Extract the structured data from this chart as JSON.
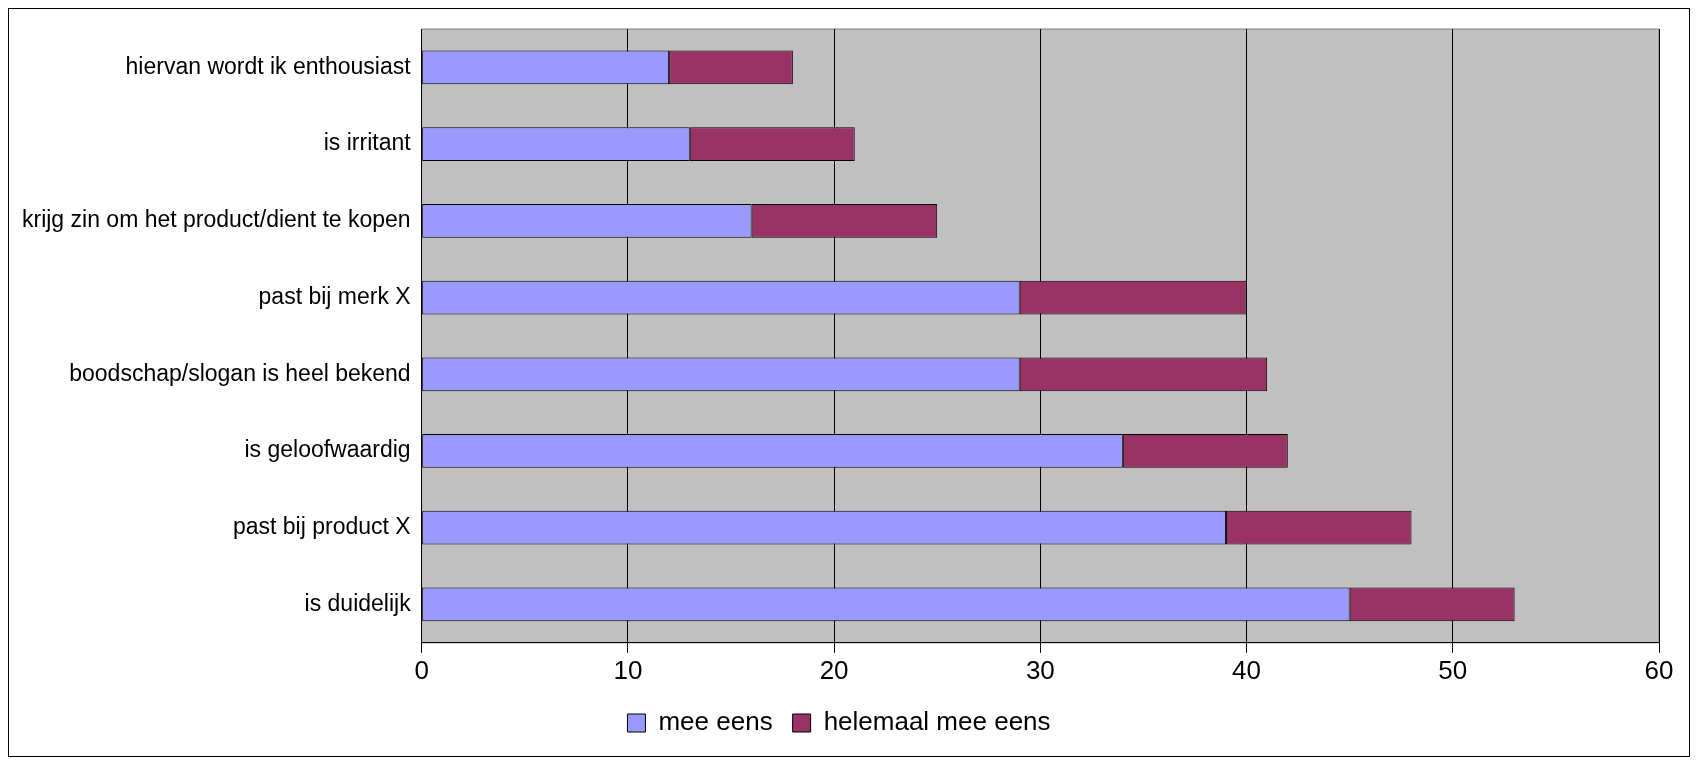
{
  "chart_data": {
    "type": "bar",
    "orientation": "horizontal",
    "stacked": true,
    "categories": [
      "hiervan wordt ik enthousiast",
      "is irritant",
      "krijg zin om het product/dient te kopen",
      "past bij merk X",
      "boodschap/slogan is heel bekend",
      "is geloofwaardig",
      "past bij product X",
      "is duidelijk"
    ],
    "series": [
      {
        "name": "mee eens",
        "color": "#9999ff",
        "values": [
          12,
          13,
          16,
          29,
          29,
          34,
          39,
          45
        ]
      },
      {
        "name": "helemaal mee eens",
        "color": "#993366",
        "values": [
          6,
          8,
          9,
          11,
          12,
          8,
          9,
          8
        ]
      }
    ],
    "xlim": [
      0,
      60
    ],
    "xticks": [
      0,
      10,
      20,
      30,
      40,
      50,
      60
    ],
    "grid": "x",
    "legend": "bottom"
  }
}
